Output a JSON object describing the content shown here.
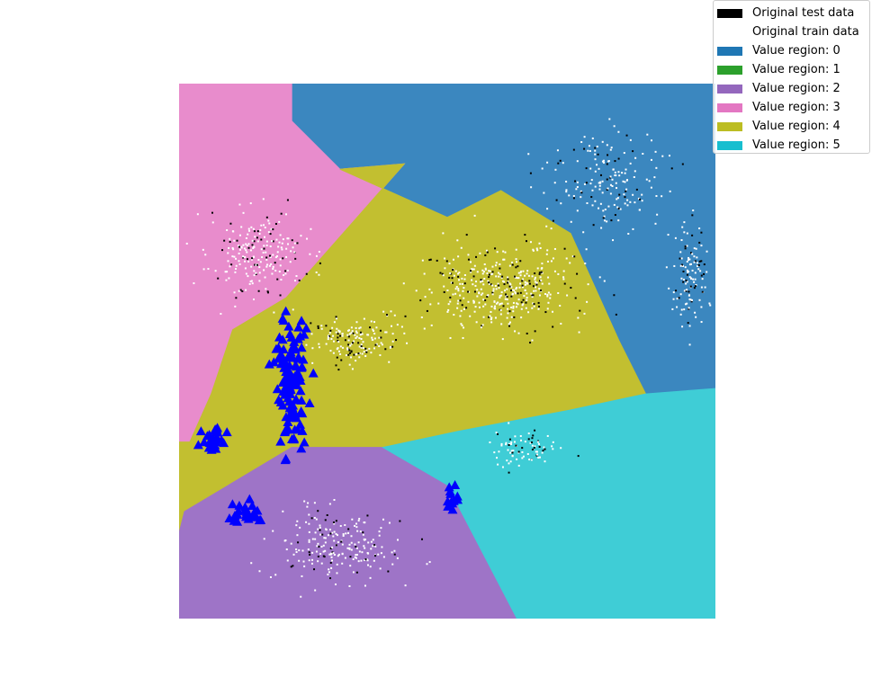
{
  "colors": {
    "region_0": "#3b87bf",
    "region_1": "#2ca02c",
    "region_2": "#9e74c7",
    "region_3": "#e88ccc",
    "region_4": "#c2bf30",
    "region_5": "#3fcdd6",
    "test_data": "#000000",
    "train_data": "#ffffff",
    "markers": "#0000ff"
  },
  "legend": [
    {
      "label": "Original test data",
      "color": "#000000"
    },
    {
      "label": "Original train data",
      "color": "#ffffff"
    },
    {
      "label": "Value region: 0",
      "color": "#1f77b4"
    },
    {
      "label": "Value region: 1",
      "color": "#2ca02c"
    },
    {
      "label": "Value region: 2",
      "color": "#9467bd"
    },
    {
      "label": "Value region: 3",
      "color": "#e377c2"
    },
    {
      "label": "Value region: 4",
      "color": "#bcbd22"
    },
    {
      "label": "Value region: 5",
      "color": "#17becf"
    }
  ],
  "chart_data": {
    "type": "scatter",
    "axes_visible": false,
    "xlim": [
      0,
      100
    ],
    "ylim": [
      0,
      100
    ],
    "regions": [
      {
        "value": 0,
        "polygon": [
          [
            21,
            100
          ],
          [
            100,
            100
          ],
          [
            100,
            43
          ],
          [
            87,
            42
          ],
          [
            82,
            52
          ],
          [
            73,
            72
          ],
          [
            60,
            80
          ],
          [
            50,
            75
          ],
          [
            30,
            84
          ],
          [
            21,
            93
          ]
        ]
      },
      {
        "value": 3,
        "polygon": [
          [
            0,
            100
          ],
          [
            21,
            100
          ],
          [
            21,
            93
          ],
          [
            30,
            84
          ],
          [
            42,
            85
          ],
          [
            20,
            60
          ],
          [
            10,
            54
          ],
          [
            6,
            42
          ],
          [
            2,
            33
          ],
          [
            0,
            33
          ]
        ]
      },
      {
        "value": 4,
        "polygon": [
          [
            30,
            84
          ],
          [
            50,
            75
          ],
          [
            60,
            80
          ],
          [
            73,
            72
          ],
          [
            82,
            52
          ],
          [
            87,
            42
          ],
          [
            73,
            39
          ],
          [
            52,
            35
          ],
          [
            38,
            32
          ],
          [
            21,
            32
          ],
          [
            1,
            20
          ],
          [
            0,
            16
          ],
          [
            0,
            33
          ],
          [
            2,
            33
          ],
          [
            6,
            42
          ],
          [
            10,
            54
          ],
          [
            20,
            60
          ],
          [
            42,
            85
          ]
        ]
      },
      {
        "value": 2,
        "polygon": [
          [
            0,
            0
          ],
          [
            63,
            0
          ],
          [
            50,
            25
          ],
          [
            38,
            32
          ],
          [
            21,
            32
          ],
          [
            1,
            20
          ],
          [
            0,
            16
          ]
        ]
      },
      {
        "value": 5,
        "polygon": [
          [
            38,
            32
          ],
          [
            52,
            35
          ],
          [
            73,
            39
          ],
          [
            87,
            42
          ],
          [
            100,
            43
          ],
          [
            100,
            0
          ],
          [
            63,
            0
          ],
          [
            50,
            25
          ]
        ]
      }
    ],
    "train_clusters": [
      {
        "cx": 15,
        "cy": 68,
        "sx": 8,
        "sy": 7,
        "n": 220
      },
      {
        "cx": 60,
        "cy": 62,
        "sx": 12,
        "sy": 7,
        "n": 420
      },
      {
        "cx": 33,
        "cy": 52,
        "sx": 7,
        "sy": 4,
        "n": 160
      },
      {
        "cx": 80,
        "cy": 82,
        "sx": 9,
        "sy": 7,
        "n": 180
      },
      {
        "cx": 95,
        "cy": 64,
        "sx": 3,
        "sy": 8,
        "n": 120
      },
      {
        "cx": 65,
        "cy": 32,
        "sx": 7,
        "sy": 3,
        "n": 80
      },
      {
        "cx": 30,
        "cy": 14,
        "sx": 10,
        "sy": 6,
        "n": 220
      }
    ],
    "test_fraction": 0.22,
    "blue_clusters": [
      {
        "cx": 21,
        "cy": 44,
        "sx": 2.5,
        "sy": 10,
        "n": 120
      },
      {
        "cx": 6,
        "cy": 33,
        "sx": 2,
        "sy": 2.5,
        "n": 30
      },
      {
        "cx": 12,
        "cy": 20,
        "sx": 3,
        "sy": 2.5,
        "n": 25
      },
      {
        "cx": 51,
        "cy": 22,
        "sx": 1.2,
        "sy": 2,
        "n": 12
      }
    ]
  }
}
